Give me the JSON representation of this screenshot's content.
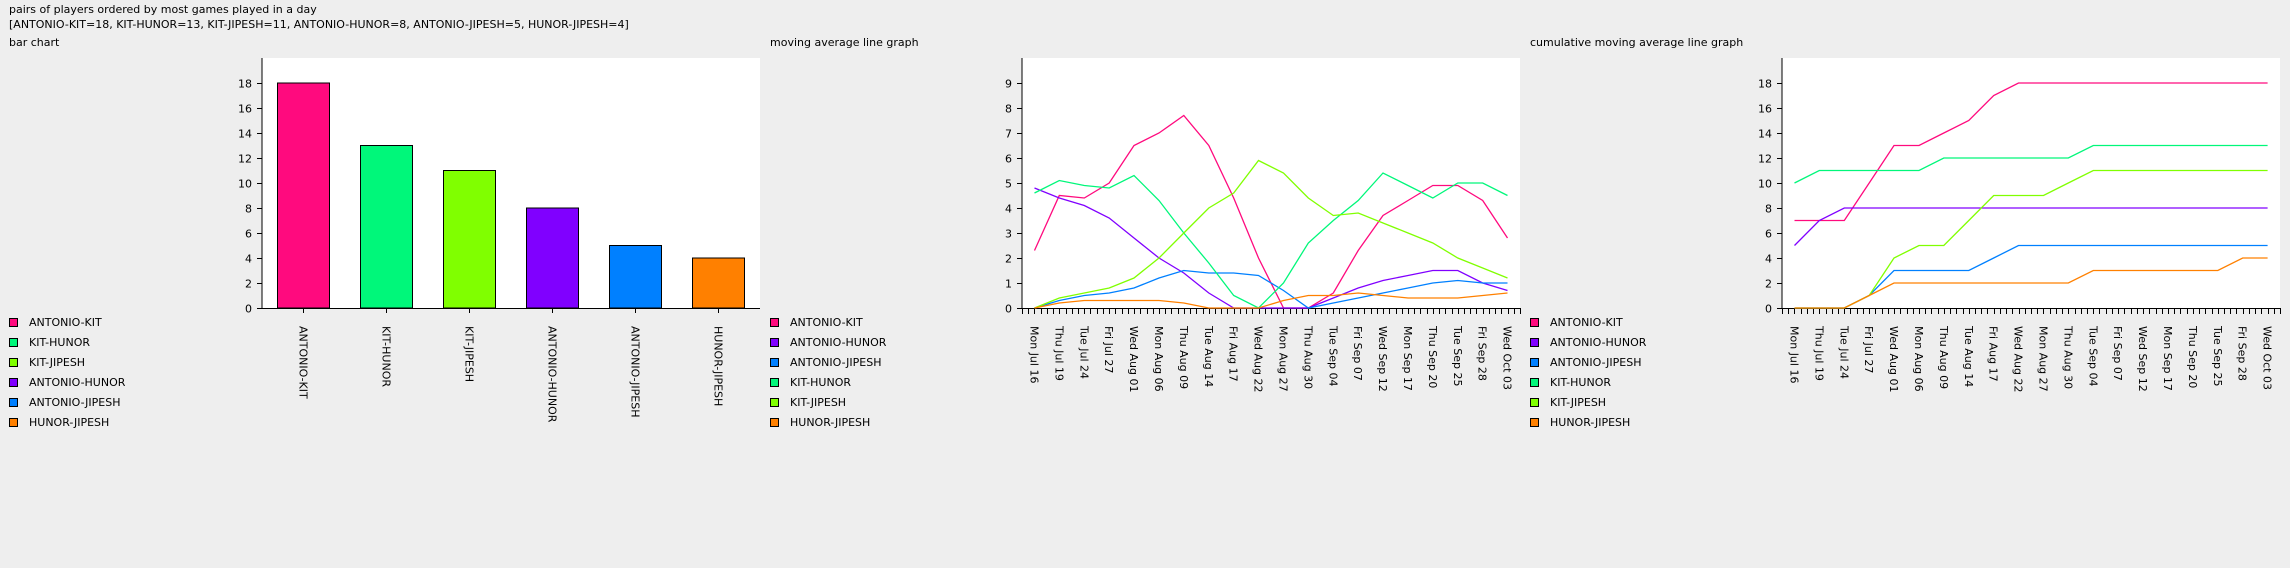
{
  "header": {
    "title": "pairs of players ordered by most games played in a day",
    "summary": "[ANTONIO-KIT=18, KIT-HUNOR=13, KIT-JIPESH=11, ANTONIO-HUNOR=8, ANTONIO-JIPESH=5, HUNOR-JIPESH=4]"
  },
  "colors": {
    "ANTONIO-KIT": "#ff0a7e",
    "KIT-HUNOR": "#00f77a",
    "KIT-JIPESH": "#80ff00",
    "ANTONIO-HUNOR": "#8000ff",
    "ANTONIO-JIPESH": "#0080ff",
    "HUNOR-JIPESH": "#ff8000"
  },
  "chart_data": [
    {
      "type": "bar",
      "title": "bar chart",
      "categories": [
        "ANTONIO-KIT",
        "KIT-HUNOR",
        "KIT-JIPESH",
        "ANTONIO-HUNOR",
        "ANTONIO-JIPESH",
        "HUNOR-JIPESH"
      ],
      "values": [
        18,
        13,
        11,
        8,
        5,
        4
      ],
      "ylim": [
        0,
        20
      ],
      "yticks": [
        0,
        2,
        4,
        6,
        8,
        10,
        12,
        14,
        16,
        18
      ],
      "legend": [
        "ANTONIO-KIT",
        "KIT-HUNOR",
        "KIT-JIPESH",
        "ANTONIO-HUNOR",
        "ANTONIO-JIPESH",
        "HUNOR-JIPESH"
      ],
      "legend_position": "bottom-left"
    },
    {
      "type": "line",
      "title": "moving average line graph",
      "x": [
        "Mon Jul 16",
        "Thu Jul 19",
        "Tue Jul 24",
        "Fri Jul 27",
        "Wed Aug 01",
        "Mon Aug 06",
        "Thu Aug 09",
        "Tue Aug 14",
        "Fri Aug 17",
        "Wed Aug 22",
        "Mon Aug 27",
        "Thu Aug 30",
        "Tue Sep 04",
        "Fri Sep 07",
        "Wed Sep 12",
        "Mon Sep 17",
        "Thu Sep 20",
        "Tue Sep 25",
        "Fri Sep 28",
        "Wed Oct 03"
      ],
      "ylim": [
        0,
        10
      ],
      "yticks": [
        0,
        1,
        2,
        3,
        4,
        5,
        6,
        7,
        8,
        9
      ],
      "series": [
        {
          "name": "ANTONIO-KIT",
          "values": [
            2.3,
            4.5,
            4.4,
            5.0,
            6.5,
            7.0,
            7.7,
            6.5,
            4.4,
            2.0,
            0.0,
            0.0,
            0.6,
            2.3,
            3.7,
            4.3,
            4.9,
            4.9,
            4.3,
            2.8
          ]
        },
        {
          "name": "ANTONIO-HUNOR",
          "values": [
            4.8,
            4.4,
            4.1,
            3.6,
            2.8,
            2.0,
            1.4,
            0.6,
            0.0,
            0.0,
            0.0,
            0.0,
            0.4,
            0.8,
            1.1,
            1.3,
            1.5,
            1.5,
            1.0,
            0.7
          ]
        },
        {
          "name": "ANTONIO-JIPESH",
          "values": [
            0.0,
            0.3,
            0.5,
            0.6,
            0.8,
            1.2,
            1.5,
            1.4,
            1.4,
            1.3,
            0.7,
            0.0,
            0.2,
            0.4,
            0.6,
            0.8,
            1.0,
            1.1,
            1.0,
            1.0
          ]
        },
        {
          "name": "KIT-HUNOR",
          "values": [
            4.6,
            5.1,
            4.9,
            4.8,
            5.3,
            4.3,
            3.0,
            1.8,
            0.5,
            0.0,
            1.0,
            2.6,
            3.5,
            4.3,
            5.4,
            4.9,
            4.4,
            5.0,
            5.0,
            4.5
          ]
        },
        {
          "name": "KIT-JIPESH",
          "values": [
            0.0,
            0.4,
            0.6,
            0.8,
            1.2,
            2.0,
            3.0,
            4.0,
            4.6,
            5.9,
            5.4,
            4.4,
            3.7,
            3.8,
            3.4,
            3.0,
            2.6,
            2.0,
            1.6,
            1.2
          ]
        },
        {
          "name": "HUNOR-JIPESH",
          "values": [
            0.0,
            0.2,
            0.3,
            0.3,
            0.3,
            0.3,
            0.2,
            0.0,
            0.0,
            0.0,
            0.3,
            0.5,
            0.5,
            0.6,
            0.5,
            0.4,
            0.4,
            0.4,
            0.5,
            0.6
          ]
        }
      ],
      "legend_position": "bottom-left"
    },
    {
      "type": "line",
      "title": "cumulative moving average line graph",
      "x": [
        "Mon Jul 16",
        "Thu Jul 19",
        "Tue Jul 24",
        "Fri Jul 27",
        "Wed Aug 01",
        "Mon Aug 06",
        "Thu Aug 09",
        "Tue Aug 14",
        "Fri Aug 17",
        "Wed Aug 22",
        "Mon Aug 27",
        "Thu Aug 30",
        "Tue Sep 04",
        "Fri Sep 07",
        "Wed Sep 12",
        "Mon Sep 17",
        "Thu Sep 20",
        "Tue Sep 25",
        "Fri Sep 28",
        "Wed Oct 03"
      ],
      "ylim": [
        0,
        20
      ],
      "yticks": [
        0,
        2,
        4,
        6,
        8,
        10,
        12,
        14,
        16,
        18
      ],
      "series": [
        {
          "name": "ANTONIO-KIT",
          "values": [
            7,
            7,
            7,
            10,
            13,
            13,
            14,
            15,
            17,
            18,
            18,
            18,
            18,
            18,
            18,
            18,
            18,
            18,
            18,
            18
          ]
        },
        {
          "name": "ANTONIO-HUNOR",
          "values": [
            5,
            7,
            8,
            8,
            8,
            8,
            8,
            8,
            8,
            8,
            8,
            8,
            8,
            8,
            8,
            8,
            8,
            8,
            8,
            8
          ]
        },
        {
          "name": "ANTONIO-JIPESH",
          "values": [
            0,
            0,
            0,
            1,
            3,
            3,
            3,
            3,
            4,
            5,
            5,
            5,
            5,
            5,
            5,
            5,
            5,
            5,
            5,
            5
          ]
        },
        {
          "name": "KIT-HUNOR",
          "values": [
            10,
            11,
            11,
            11,
            11,
            11,
            12,
            12,
            12,
            12,
            12,
            12,
            13,
            13,
            13,
            13,
            13,
            13,
            13,
            13
          ]
        },
        {
          "name": "KIT-JIPESH",
          "values": [
            0,
            0,
            0,
            1,
            4,
            5,
            5,
            7,
            9,
            9,
            9,
            10,
            11,
            11,
            11,
            11,
            11,
            11,
            11,
            11
          ]
        },
        {
          "name": "HUNOR-JIPESH",
          "values": [
            0,
            0,
            0,
            1,
            2,
            2,
            2,
            2,
            2,
            2,
            2,
            2,
            3,
            3,
            3,
            3,
            3,
            3,
            4,
            4
          ]
        }
      ],
      "legend_position": "bottom-left"
    }
  ]
}
